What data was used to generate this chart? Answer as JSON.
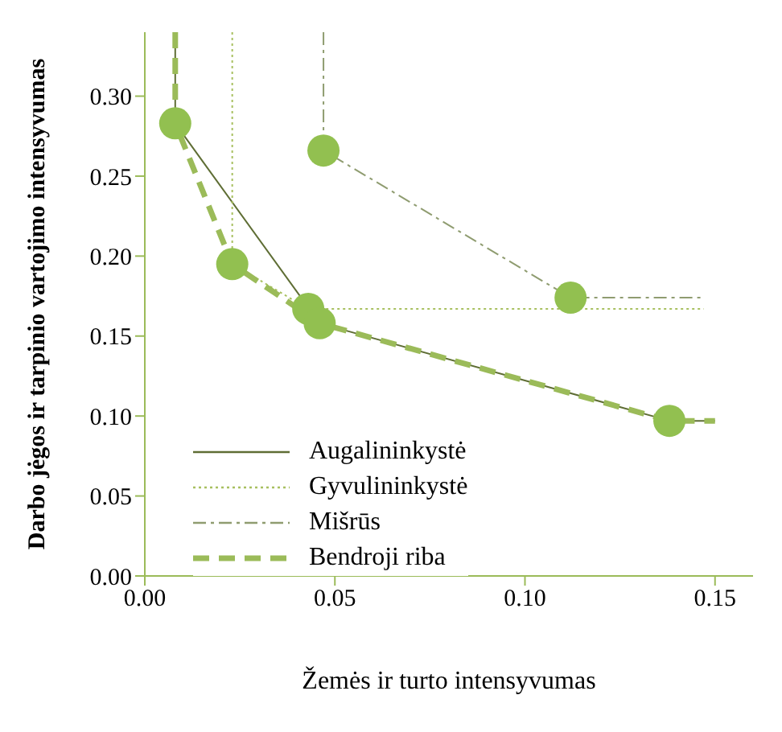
{
  "chart_data": {
    "type": "line",
    "xlabel": "Žemės ir turto intensyvumas",
    "ylabel": "Darbo jėgos ir tarpinio vartojimo intensyvumas",
    "xlim": [
      0,
      0.16
    ],
    "xticks": [
      {
        "value": 0,
        "label": "0.00"
      },
      {
        "value": 0.05,
        "label": "0.05"
      },
      {
        "value": 0.1,
        "label": "0.10"
      },
      {
        "value": 0.15,
        "label": "0.15"
      }
    ],
    "ylim": [
      0,
      0.34
    ],
    "yticks": [
      {
        "value": 0,
        "label": "0.00"
      },
      {
        "value": 0.05,
        "label": "0.05"
      },
      {
        "value": 0.1,
        "label": "0.10"
      },
      {
        "value": 0.15,
        "label": "0.15"
      },
      {
        "value": 0.2,
        "label": "0.20"
      },
      {
        "value": 0.25,
        "label": "0.25"
      },
      {
        "value": 0.3,
        "label": "0.30"
      }
    ],
    "grid": false,
    "legend": "bottom left",
    "marker": "none",
    "series": [
      {
        "name": "Augalininkystė",
        "color": "#5f6e35",
        "line_style": "solid",
        "x": [
          0.008,
          0.008,
          0.046,
          0.138,
          0.15
        ],
        "values": [
          0.34,
          0.283,
          0.158,
          0.097,
          0.097
        ]
      },
      {
        "name": "Gyvulininkystė",
        "color": "#a8c060",
        "line_style": "dotted",
        "x": [
          0.023,
          0.023,
          0.043,
          0.147
        ],
        "values": [
          0.34,
          0.195,
          0.167,
          0.167
        ]
      },
      {
        "name": "Mišrūs",
        "color": "#8f9c70",
        "line_style": "dashdot",
        "x": [
          0.047,
          0.047,
          0.112,
          0.147
        ],
        "values": [
          0.34,
          0.266,
          0.174,
          0.174
        ]
      },
      {
        "name": "Bendroji riba",
        "color": "#9bbb59",
        "line_style": "dashed",
        "x": [
          0.008,
          0.008,
          0.023,
          0.046,
          0.138,
          0.15
        ],
        "values": [
          0.34,
          0.283,
          0.195,
          0.158,
          0.097,
          0.097
        ]
      },
      {
        "type": "scatter",
        "color": "#92c050",
        "marker": "circle",
        "x": [
          0.008,
          0.023,
          0.043,
          0.046,
          0.047,
          0.112,
          0.138
        ],
        "values": [
          0.283,
          0.195,
          0.167,
          0.158,
          0.266,
          0.174,
          0.097
        ]
      }
    ]
  }
}
